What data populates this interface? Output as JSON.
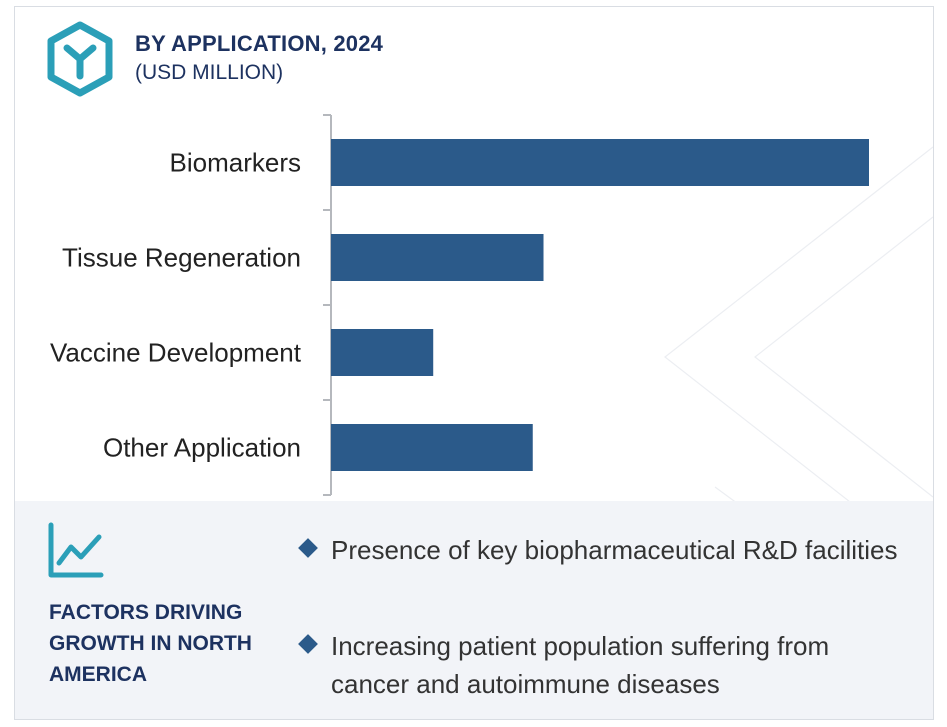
{
  "header": {
    "title": "BY APPLICATION, 2024",
    "subtitle": "(USD MILLION)",
    "logo_icon": "hexagon-y-logo-icon"
  },
  "chart_data": {
    "type": "bar",
    "orientation": "horizontal",
    "categories": [
      "Biomarkers",
      "Tissue Regeneration",
      "Vaccine Development",
      "Other Application"
    ],
    "values": [
      100,
      39.5,
      19,
      37.5
    ],
    "bar_color": "#2b5a8a",
    "value_axis_visible": false,
    "grid": false,
    "legend": "none"
  },
  "factors": {
    "icon": "trend-line-chart-icon",
    "heading": "FACTORS DRIVING GROWTH IN NORTH AMERICA",
    "items": [
      "Presence of key biopharmaceutical R&D facilities",
      "Increasing patient population suffering from cancer and autoimmune diseases"
    ]
  },
  "colors": {
    "accent": "#2b9fb8",
    "navy": "#1d3260",
    "bar": "#2b5a8a",
    "panel": "#f2f4f8"
  }
}
